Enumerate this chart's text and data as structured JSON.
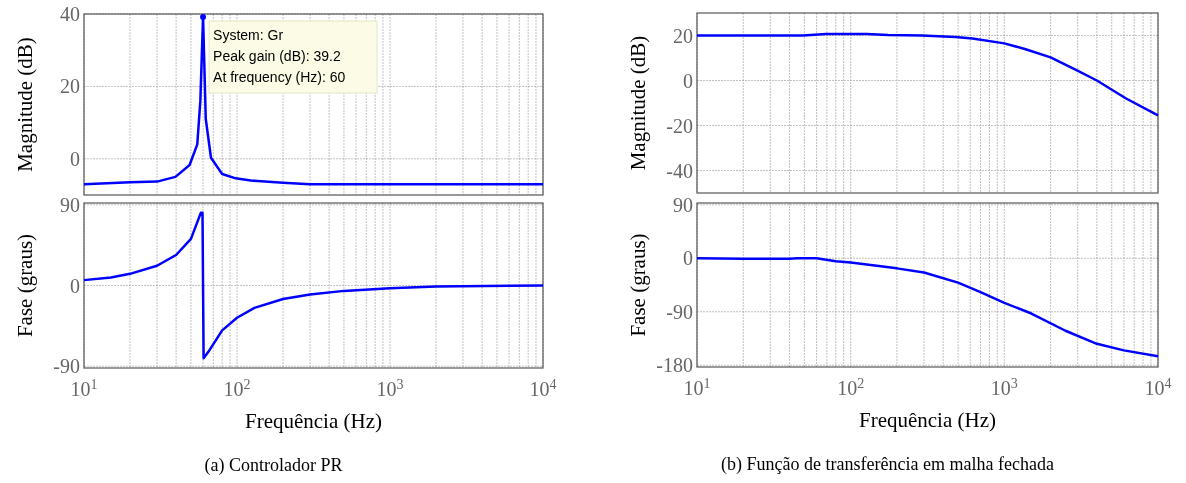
{
  "chart_data": [
    {
      "type": "line",
      "ylabel": "Magnitude (dB)",
      "log": "x",
      "xlim": [
        10,
        10000
      ],
      "xticks": [
        {
          "value": 10,
          "label": null
        },
        {
          "value": 100,
          "label": null
        },
        {
          "value": 1000,
          "label": null
        },
        {
          "value": 10000,
          "label": null
        }
      ],
      "ylim": [
        -10,
        40
      ],
      "yticks": [
        0,
        20,
        40
      ],
      "grid": true,
      "tick_labels": "y",
      "series": [
        {
          "color": "#0000ff",
          "x": [
            10,
            20,
            30,
            39.6,
            49,
            55,
            57.6,
            60,
            62.5,
            67.6,
            80,
            98,
            123,
            200,
            300,
            1000,
            10000
          ],
          "values": [
            -7,
            -6.5,
            -6.3,
            -5,
            -1.7,
            4,
            16,
            39.2,
            11,
            0.3,
            -4.2,
            -5.4,
            -6,
            -6.6,
            -7,
            -7,
            -7
          ]
        }
      ],
      "annotations": [
        {
          "text": "System: Gr\nPeak gain (dB): 39.2\nAt frequency (Hz): 60",
          "x": 60,
          "y": 39.2
        }
      ]
    },
    {
      "type": "line",
      "xlabel": "Frequência (Hz)",
      "ylabel": "Fase (graus)",
      "log": "x",
      "xlim": [
        10,
        10000
      ],
      "xticks": [
        {
          "value": 10,
          "label": "10$^{1}$"
        },
        {
          "value": 100,
          "label": "10$^{2}$"
        },
        {
          "value": 1000,
          "label": "10$^{3}$"
        },
        {
          "value": 10000,
          "label": "10$^{4}$"
        }
      ],
      "ylim": [
        -92,
        92
      ],
      "yticks": [
        -90,
        0,
        90
      ],
      "grid": true,
      "series": [
        {
          "color": "#0000ff",
          "x": [
            10,
            15,
            20,
            30,
            40,
            50,
            58,
            59.5,
            60.5,
            65,
            80,
            100,
            130,
            200,
            300,
            500,
            1000,
            2000,
            10000
          ],
          "values": [
            6,
            9,
            13,
            22,
            34,
            52,
            81,
            81,
            -81,
            -74,
            -50,
            -36,
            -25,
            -15,
            -10,
            -6,
            -3,
            -1,
            0
          ]
        }
      ],
      "annotations": [
        "(a) Controlador PR"
      ]
    },
    {
      "type": "line",
      "ylabel": "Magnitude (dB)",
      "log": "x",
      "xlim": [
        10,
        10000
      ],
      "xticks": [
        {
          "value": 10,
          "label": null
        },
        {
          "value": 100,
          "label": null
        },
        {
          "value": 1000,
          "label": null
        },
        {
          "value": 10000,
          "label": null
        }
      ],
      "ylim": [
        -50,
        30
      ],
      "yticks": [
        -40,
        -20,
        0,
        20
      ],
      "grid": true,
      "tick_labels": "y",
      "series": [
        {
          "color": "#0000ff",
          "x": [
            10,
            49,
            69,
            127,
            175,
            290,
            480,
            620,
            1000,
            1360,
            2000,
            2970,
            4000,
            6200,
            10000
          ],
          "values": [
            20,
            20,
            20.7,
            20.7,
            20.2,
            20,
            19.3,
            18.7,
            16.5,
            14,
            10.3,
            4.5,
            0,
            -8,
            -15.5
          ]
        }
      ]
    },
    {
      "type": "line",
      "xlabel": "Frequência (Hz)",
      "ylabel": "Fase (graus)",
      "log": "x",
      "xlim": [
        10,
        10000
      ],
      "xticks": [
        {
          "value": 10,
          "label": "10$^{1}$"
        },
        {
          "value": 100,
          "label": "10$^{2}$"
        },
        {
          "value": 1000,
          "label": "10$^{3}$"
        },
        {
          "value": 10000,
          "label": "10$^{4}$"
        }
      ],
      "ylim": [
        -183,
        93
      ],
      "yticks": [
        -180,
        -90,
        0,
        90
      ],
      "grid": true,
      "series": [
        {
          "color": "#0000ff",
          "x": [
            10,
            20,
            40,
            45,
            60,
            80,
            100,
            200,
            300,
            500,
            700,
            1000,
            1500,
            2500,
            4000,
            6000,
            10000
          ],
          "values": [
            0,
            -1,
            -1,
            0,
            0,
            -5,
            -7,
            -17,
            -24,
            -41,
            -57,
            -75,
            -93,
            -122,
            -144,
            -155,
            -165
          ]
        }
      ],
      "annotations": [
        "(b) Função de transferência em malha fechada"
      ]
    }
  ]
}
